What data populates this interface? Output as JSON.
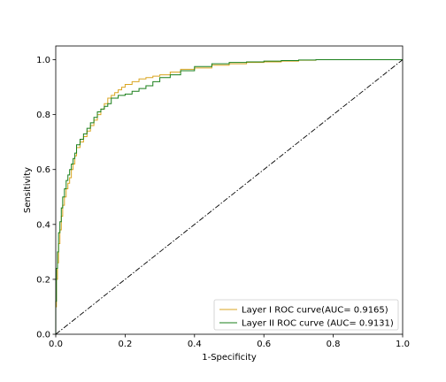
{
  "chart_data": {
    "type": "line",
    "title": "",
    "xlabel": "1-Specificity",
    "ylabel": "Sensitivity",
    "xlim": [
      0,
      1
    ],
    "ylim": [
      0,
      1.05
    ],
    "xticks": [
      0.0,
      0.2,
      0.4,
      0.6,
      0.8,
      1.0
    ],
    "yticks": [
      0.0,
      0.2,
      0.4,
      0.6,
      0.8,
      1.0
    ],
    "xtick_labels": [
      "0.0",
      "0.2",
      "0.4",
      "0.6",
      "0.8",
      "1.0"
    ],
    "ytick_labels": [
      "0.0",
      "0.2",
      "0.4",
      "0.6",
      "0.8",
      "1.0"
    ],
    "grid": false,
    "legend_position": "lower-right",
    "series": [
      {
        "name": "Layer I ROC curve(AUC= 0.9165)",
        "color": "#daa520",
        "style": "step",
        "x": [
          0,
          0.002,
          0.005,
          0.008,
          0.012,
          0.016,
          0.02,
          0.025,
          0.03,
          0.035,
          0.04,
          0.045,
          0.05,
          0.055,
          0.06,
          0.07,
          0.08,
          0.09,
          0.1,
          0.11,
          0.12,
          0.13,
          0.14,
          0.15,
          0.16,
          0.17,
          0.18,
          0.19,
          0.2,
          0.22,
          0.24,
          0.26,
          0.28,
          0.3,
          0.33,
          0.36,
          0.4,
          0.45,
          0.5,
          0.55,
          0.6,
          0.65,
          0.7,
          0.75,
          0.8,
          0.9,
          1.0
        ],
        "y": [
          0,
          0.1,
          0.2,
          0.26,
          0.33,
          0.38,
          0.43,
          0.47,
          0.5,
          0.53,
          0.55,
          0.57,
          0.6,
          0.62,
          0.65,
          0.68,
          0.7,
          0.72,
          0.74,
          0.76,
          0.78,
          0.8,
          0.82,
          0.84,
          0.86,
          0.87,
          0.88,
          0.89,
          0.9,
          0.91,
          0.92,
          0.93,
          0.935,
          0.94,
          0.945,
          0.955,
          0.965,
          0.97,
          0.98,
          0.985,
          0.99,
          0.992,
          0.995,
          0.998,
          1.0,
          1.0,
          1.0
        ]
      },
      {
        "name": "Layer II ROC curve (AUC= 0.9131)",
        "color": "#1a7f1a",
        "style": "step",
        "x": [
          0,
          0.002,
          0.005,
          0.008,
          0.012,
          0.016,
          0.02,
          0.025,
          0.03,
          0.035,
          0.04,
          0.045,
          0.05,
          0.055,
          0.06,
          0.07,
          0.08,
          0.09,
          0.1,
          0.11,
          0.12,
          0.13,
          0.14,
          0.15,
          0.16,
          0.18,
          0.2,
          0.22,
          0.24,
          0.26,
          0.28,
          0.3,
          0.33,
          0.36,
          0.4,
          0.45,
          0.5,
          0.55,
          0.6,
          0.65,
          0.7,
          0.75,
          0.8,
          0.9,
          1.0
        ],
        "y": [
          0,
          0.12,
          0.24,
          0.3,
          0.37,
          0.41,
          0.46,
          0.5,
          0.53,
          0.56,
          0.58,
          0.6,
          0.62,
          0.64,
          0.66,
          0.69,
          0.71,
          0.73,
          0.75,
          0.77,
          0.79,
          0.81,
          0.82,
          0.83,
          0.84,
          0.86,
          0.87,
          0.875,
          0.885,
          0.895,
          0.905,
          0.92,
          0.935,
          0.945,
          0.96,
          0.975,
          0.985,
          0.99,
          0.992,
          0.995,
          0.997,
          0.999,
          1.0,
          1.0,
          1.0
        ]
      },
      {
        "name": "",
        "color": "#000000",
        "style": "dashdot",
        "x": [
          0,
          1
        ],
        "y": [
          0,
          1
        ]
      }
    ]
  }
}
